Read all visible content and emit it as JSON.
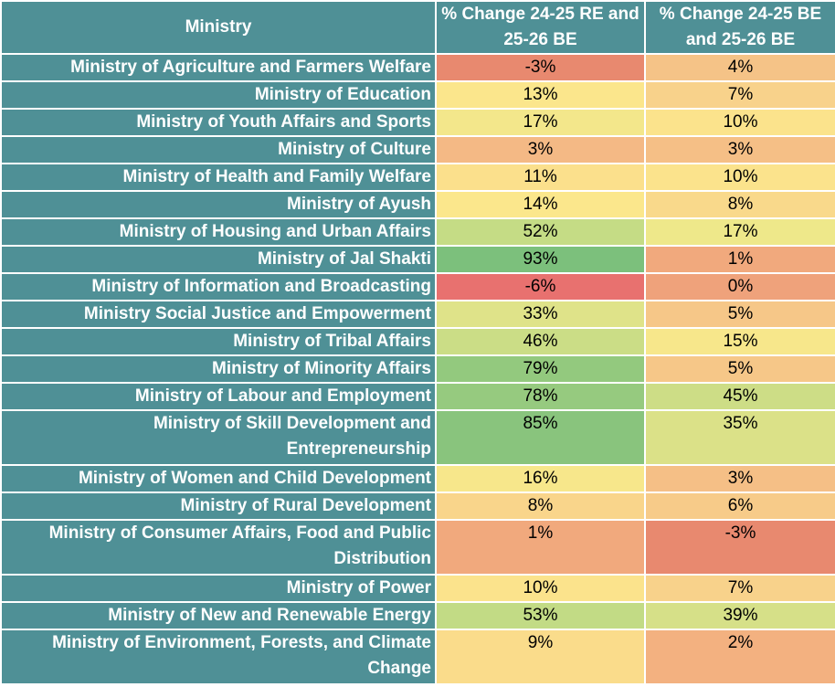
{
  "table": {
    "headers": [
      "Ministry",
      "% Change 24-25 RE and 25-26 BE",
      "% Change 24-25 BE and 25-26 BE"
    ],
    "rows": [
      {
        "ministry": "Ministry of Agriculture and Farmers Welfare",
        "re": "-3%",
        "be": "4%",
        "re_color": "#e8896f",
        "be_color": "#f5c387"
      },
      {
        "ministry": "Ministry of Education",
        "re": "13%",
        "be": "7%",
        "re_color": "#fbe68c",
        "be_color": "#f8d28b"
      },
      {
        "ministry": "Ministry of Youth Affairs and Sports",
        "re": "17%",
        "be": "10%",
        "re_color": "#f3e78b",
        "be_color": "#fbe38c"
      },
      {
        "ministry": "Ministry of Culture",
        "re": "3%",
        "be": "3%",
        "re_color": "#f4b985",
        "be_color": "#f5bf86"
      },
      {
        "ministry": "Ministry of Health and Family Welfare",
        "re": "11%",
        "be": "10%",
        "re_color": "#fbe08c",
        "be_color": "#fbe38c"
      },
      {
        "ministry": "Ministry of Ayush",
        "re": "14%",
        "be": "8%",
        "re_color": "#fbe78c",
        "be_color": "#f9d98b"
      },
      {
        "ministry": "Ministry of Housing and Urban Affairs",
        "re": "52%",
        "be": "17%",
        "re_color": "#c5dc85",
        "be_color": "#eee88a"
      },
      {
        "ministry": "Ministry of Jal Shakti",
        "re": "93%",
        "be": "1%",
        "re_color": "#7cc07c",
        "be_color": "#f1a97d"
      },
      {
        "ministry": "Ministry of Information and Broadcasting",
        "re": "-6%",
        "be": "0%",
        "re_color": "#e8716f",
        "be_color": "#efa27b"
      },
      {
        "ministry": "Ministry Social Justice and Empowerment",
        "re": "33%",
        "be": "5%",
        "re_color": "#dfe389",
        "be_color": "#f6c788"
      },
      {
        "ministry": "Ministry of Tribal Affairs",
        "re": "46%",
        "be": "15%",
        "re_color": "#cbdd86",
        "be_color": "#f7e78b"
      },
      {
        "ministry": "Ministry of Minority Affairs",
        "re": "79%",
        "be": "5%",
        "re_color": "#93c97e",
        "be_color": "#f6c788"
      },
      {
        "ministry": "Ministry of Labour and Employment",
        "re": "78%",
        "be": "45%",
        "re_color": "#96ca7f",
        "be_color": "#cddd86"
      },
      {
        "ministry": "Ministry of Skill Development and Entrepreneurship",
        "re": "85%",
        "be": "35%",
        "re_color": "#89c47d",
        "be_color": "#dbe188",
        "tall": true
      },
      {
        "ministry": "Ministry of Women and Child Development",
        "re": "16%",
        "be": "3%",
        "re_color": "#f7e78b",
        "be_color": "#f5bf86"
      },
      {
        "ministry": "Ministry of Rural Development",
        "re": "8%",
        "be": "6%",
        "re_color": "#f9d58b",
        "be_color": "#f7cb89"
      },
      {
        "ministry": "Ministry of Consumer Affairs, Food and Public Distribution",
        "re": "1%",
        "be": "-3%",
        "re_color": "#f1a97d",
        "be_color": "#e8896f",
        "tall": true
      },
      {
        "ministry": "Ministry of Power",
        "re": "10%",
        "be": "7%",
        "re_color": "#fbe38c",
        "be_color": "#f8d28b"
      },
      {
        "ministry": "Ministry of New and Renewable Energy",
        "re": "53%",
        "be": "39%",
        "re_color": "#c2db85",
        "be_color": "#d6e088"
      },
      {
        "ministry": "Ministry of Environment, Forests, and Climate Change",
        "re": "9%",
        "be": "2%",
        "re_color": "#fadc8b",
        "be_color": "#f3b180",
        "tall": true
      }
    ]
  }
}
